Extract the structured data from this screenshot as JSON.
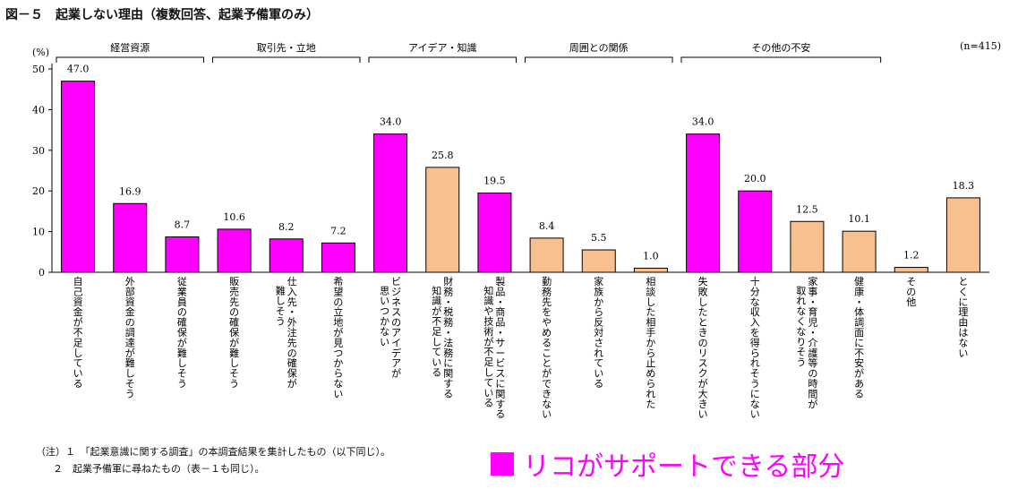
{
  "figure_title": "図－５　起業しない理由（複数回答、起業予備軍のみ）",
  "colors": {
    "highlight": "#ff00ff",
    "other": "#f9c08f",
    "legend_text": "#ff00ff"
  },
  "chart_data": {
    "type": "bar",
    "ylabel": "(%)",
    "ylim": [
      0,
      50
    ],
    "yticks": [
      0,
      10,
      20,
      30,
      40,
      50
    ],
    "sample_note": "(n=415)",
    "groups": [
      {
        "name": "経営資源",
        "from": 0,
        "to": 2
      },
      {
        "name": "取引先・立地",
        "from": 3,
        "to": 5
      },
      {
        "name": "アイデア・知識",
        "from": 6,
        "to": 8
      },
      {
        "name": "周囲との関係",
        "from": 9,
        "to": 11
      },
      {
        "name": "その他の不安",
        "from": 12,
        "to": 15
      }
    ],
    "categories": [
      "自己資金が不足している",
      "外部資金の調達が難しそう",
      "従業員の確保が難しそう",
      "販売先の確保が難しそう",
      "仕入先・外注先の確保が\n難しそう",
      "希望の立地が見つからない",
      "ビジネスのアイデアが\n思いつかない",
      "財務・税務・法務に関する\n知識が不足している",
      "製品・商品・サービスに関する\n知識や技術が不足している",
      "勤務先をやめることができない",
      "家族から反対されている",
      "相談した相手から止められた",
      "失敗したときのリスクが大きい",
      "十分な収入を得られそうにない",
      "家事・育児・介護等の時間が\n取れなくなりそう",
      "健康・体調面に不安がある",
      "その他",
      "とくに理由はない"
    ],
    "values": [
      47.0,
      16.9,
      8.7,
      10.6,
      8.2,
      7.2,
      34.0,
      25.8,
      19.5,
      8.4,
      5.5,
      1.0,
      34.0,
      20.0,
      12.5,
      10.1,
      1.2,
      18.3
    ],
    "data_labels": [
      "47.0",
      "16.9",
      "8.7",
      "10.6",
      "8.2",
      "7.2",
      "34.0",
      "25.8",
      "19.5",
      "8.4",
      "5.5",
      "1.0",
      "34.0",
      "20.0",
      "12.5",
      "10.1",
      "1.2",
      "18.3"
    ],
    "highlighted": [
      true,
      true,
      true,
      true,
      true,
      true,
      true,
      false,
      true,
      false,
      false,
      false,
      true,
      true,
      false,
      false,
      false,
      false
    ]
  },
  "notes": [
    "（注）１　「起業意識に関する調査」の本調査結果を集計したもの（以下同じ）。",
    "２　起業予備軍に尋ねたもの（表－１も同じ）。"
  ],
  "legend_label": "リコがサポートできる部分"
}
